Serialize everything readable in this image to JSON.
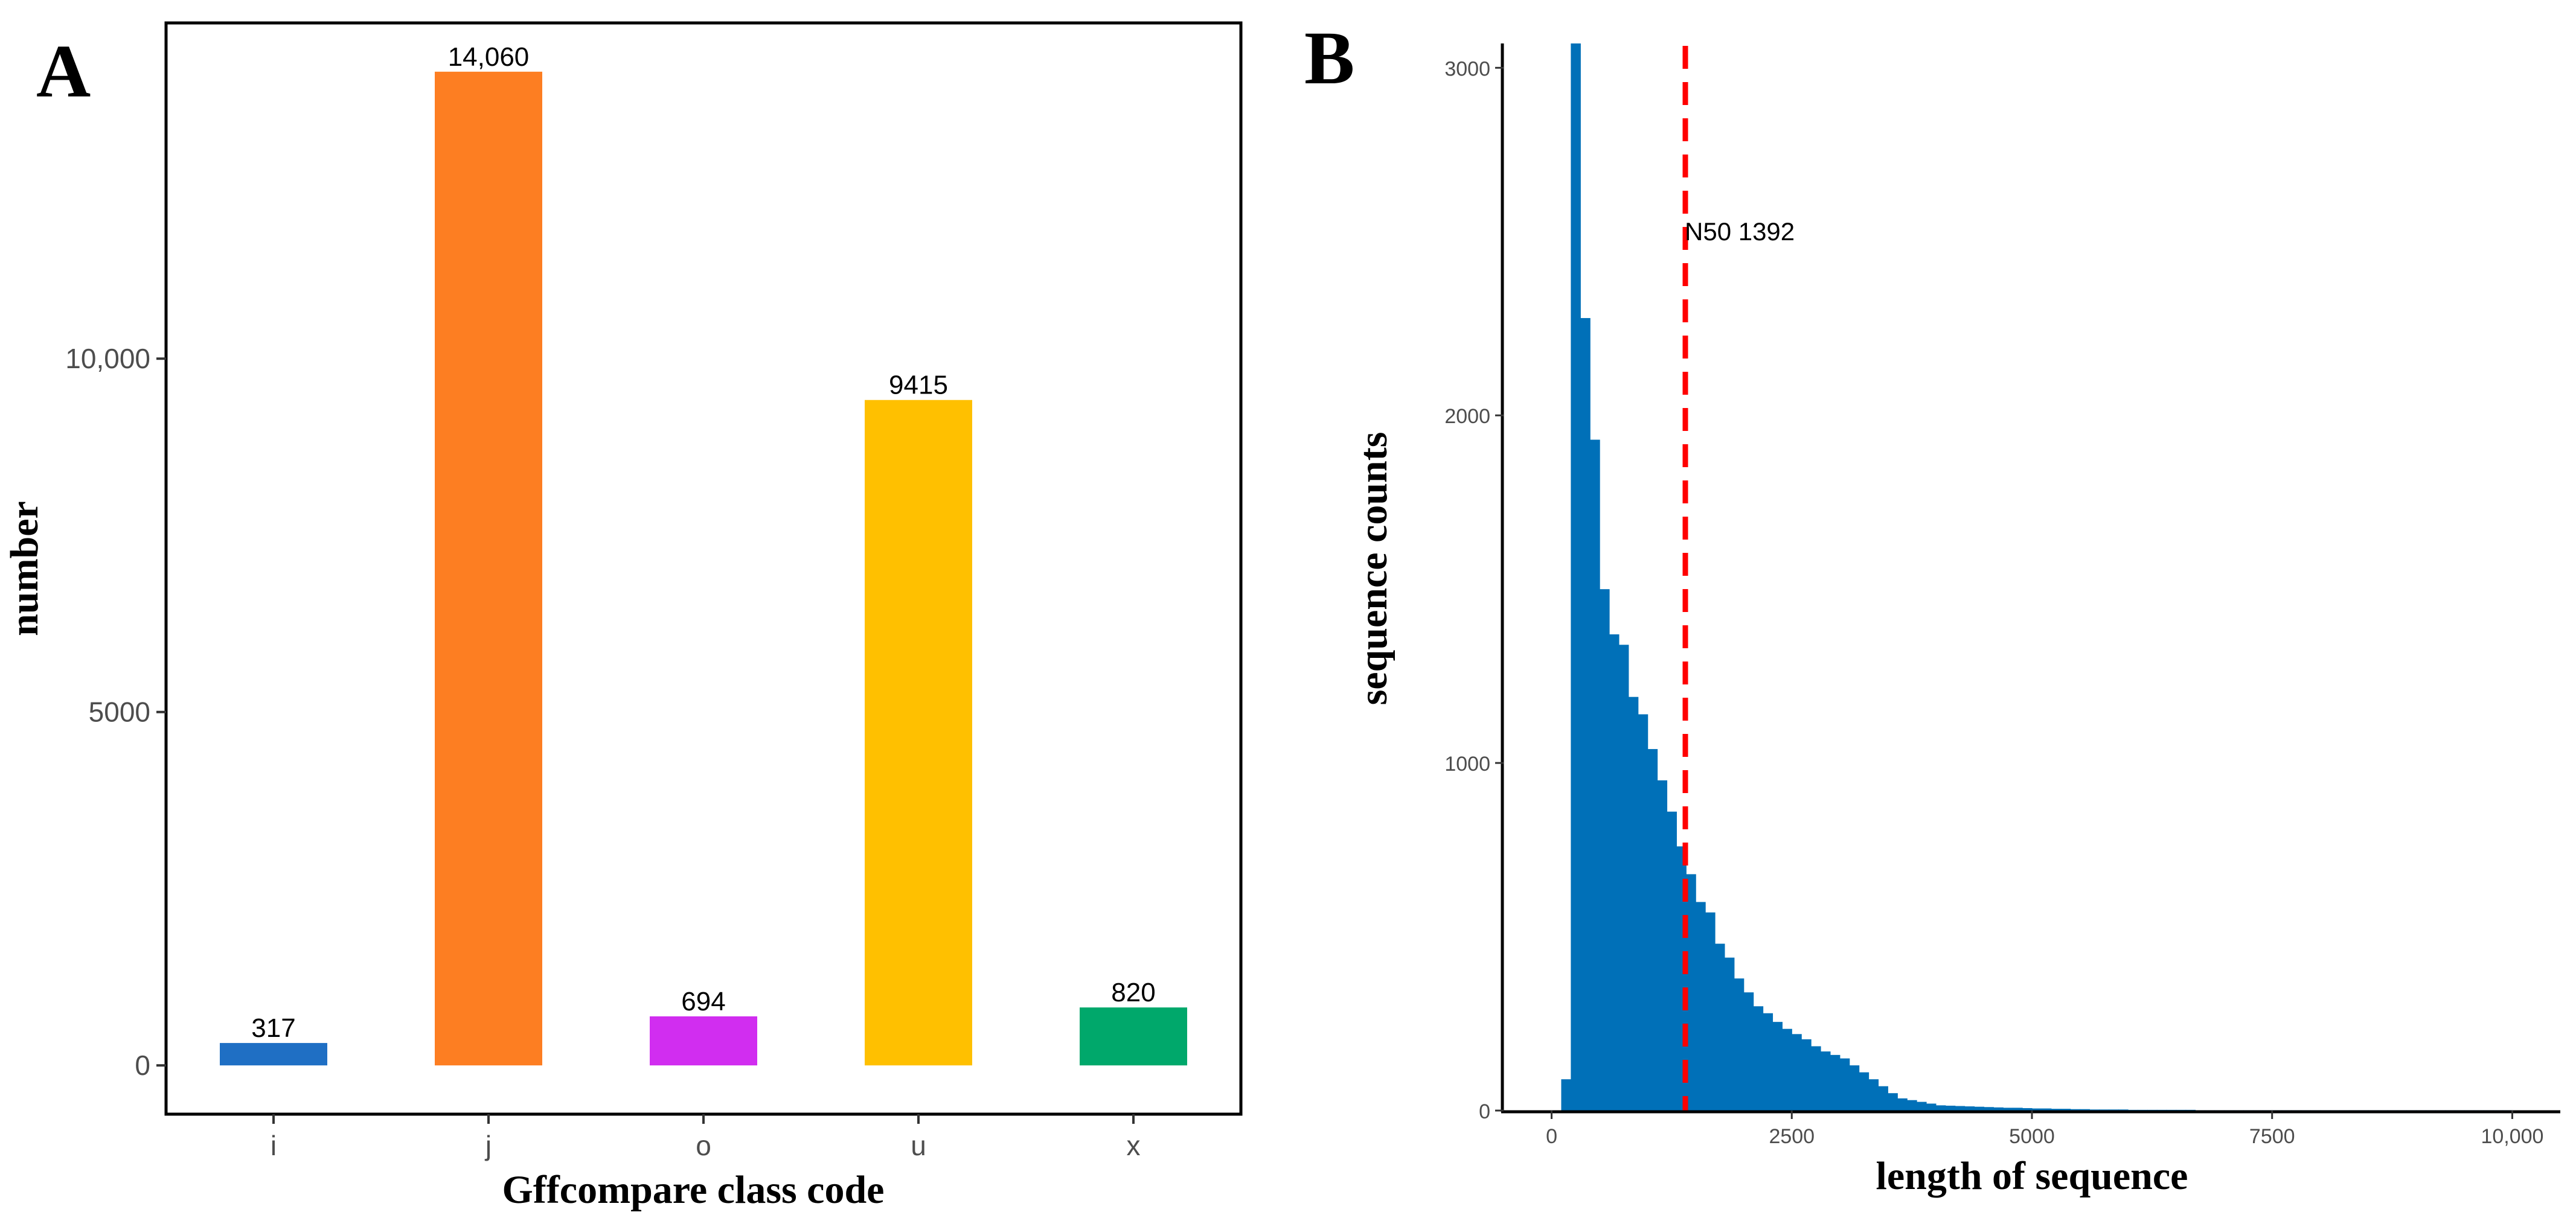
{
  "panels": [
    {
      "letter": "A"
    },
    {
      "letter": "B"
    }
  ],
  "chart_data": [
    {
      "type": "bar",
      "panel": "A",
      "title": "",
      "xlabel": "Gffcompare class code",
      "ylabel": "number",
      "categories": [
        "i",
        "j",
        "o",
        "u",
        "x"
      ],
      "values": [
        317,
        14060,
        694,
        9415,
        820
      ],
      "data_labels": [
        "317",
        "14,060",
        "694",
        "9415",
        "820"
      ],
      "colors": [
        "#1f6fc4",
        "#fd7e22",
        "#d12df0",
        "#ffc000",
        "#00a86b"
      ],
      "ylim": [
        -690,
        14750
      ],
      "yticks": [
        0,
        5000,
        10000
      ],
      "ytick_labels": [
        "0",
        "5000",
        "10,000"
      ],
      "grid": false,
      "legend": "none"
    },
    {
      "type": "bar",
      "subtype": "histogram",
      "panel": "B",
      "title": "",
      "xlabel": "length of sequence",
      "ylabel": "sequence counts",
      "bin_width": 100,
      "bin_start": 0,
      "counts": [
        0,
        90,
        3070,
        2280,
        1930,
        1500,
        1370,
        1340,
        1190,
        1140,
        1040,
        950,
        860,
        760,
        680,
        600,
        570,
        480,
        440,
        380,
        340,
        300,
        280,
        255,
        235,
        220,
        205,
        185,
        170,
        160,
        150,
        130,
        110,
        90,
        70,
        50,
        35,
        30,
        25,
        20,
        15,
        14,
        13,
        12,
        11,
        10,
        9,
        8,
        8,
        7,
        6,
        6,
        5,
        5,
        4,
        4,
        3,
        3,
        3,
        3,
        2,
        2,
        2,
        2,
        2,
        2,
        2,
        1,
        1,
        1,
        1,
        1,
        1,
        1,
        1,
        1,
        1,
        1,
        1,
        1,
        1,
        1,
        1,
        1,
        1,
        1,
        1,
        1,
        1,
        1,
        1,
        1,
        1,
        1,
        1,
        1,
        1,
        1,
        1,
        1
      ],
      "bar_color": "#0070b8",
      "xlim": [
        -500,
        10500
      ],
      "ylim": [
        0,
        3070
      ],
      "xticks": [
        0,
        2500,
        5000,
        7500,
        10000
      ],
      "xtick_labels": [
        "0",
        "2500",
        "5000",
        "7500",
        "10,000"
      ],
      "yticks": [
        0,
        1000,
        2000,
        3000
      ],
      "ytick_labels": [
        "0",
        "1000",
        "2000",
        "3000"
      ],
      "vline": {
        "x": 1392,
        "color": "#ff0000",
        "style": "dashed",
        "label": "N50 1392"
      },
      "grid": false,
      "legend": "none"
    }
  ]
}
